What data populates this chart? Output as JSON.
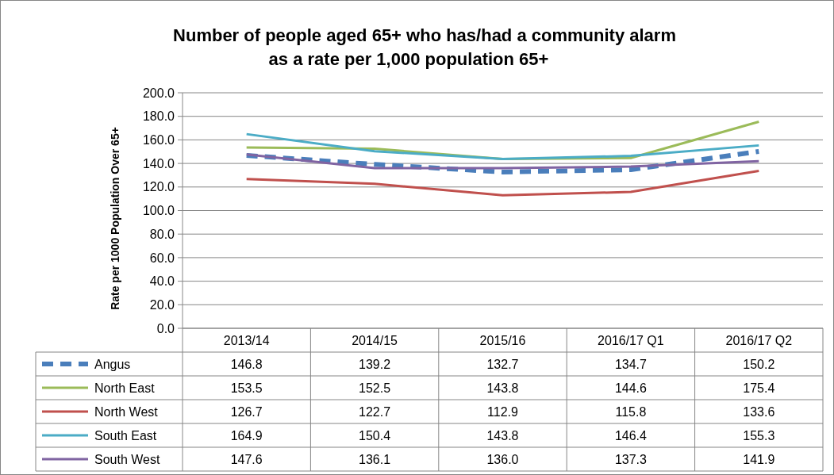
{
  "chart_data": {
    "type": "line",
    "title": "Number of people aged 65+ who has/had a community alarm\nas a rate per 1,000 population 65+",
    "ylabel": "Rate per 1000 Population  Over  65+",
    "categories": [
      "2013/14",
      "2014/15",
      "2015/16",
      "2016/17 Q1",
      "2016/17 Q2"
    ],
    "ylim": [
      0,
      200
    ],
    "yticks": [
      {
        "value": 0,
        "label": "0.0"
      },
      {
        "value": 20,
        "label": "20.0"
      },
      {
        "value": 40,
        "label": "40.0"
      },
      {
        "value": 60,
        "label": "60.0"
      },
      {
        "value": 80,
        "label": "80.0"
      },
      {
        "value": 100,
        "label": "100.0"
      },
      {
        "value": 120,
        "label": "120.0"
      },
      {
        "value": 140,
        "label": "140.0"
      },
      {
        "value": 160,
        "label": "160.0"
      },
      {
        "value": 180,
        "label": "180.0"
      },
      {
        "value": 200,
        "label": "200.0"
      }
    ],
    "grid": "y",
    "legend": "bottom",
    "marker": "none",
    "series": [
      {
        "name": "Angus",
        "color": "#4a7ebb",
        "line_style": "dashed",
        "values": [
          146.8,
          139.2,
          132.7,
          134.7,
          150.2
        ],
        "value_labels": [
          "146.8",
          "139.2",
          "132.7",
          "134.7",
          "150.2"
        ]
      },
      {
        "name": "North East",
        "color": "#9bbb59",
        "line_style": "solid",
        "values": [
          153.5,
          152.5,
          143.8,
          144.6,
          175.4
        ],
        "value_labels": [
          "153.5",
          "152.5",
          "143.8",
          "144.6",
          "175.4"
        ]
      },
      {
        "name": "North West",
        "color": "#c0504d",
        "line_style": "solid",
        "values": [
          126.7,
          122.7,
          112.9,
          115.8,
          133.6
        ],
        "value_labels": [
          "126.7",
          "122.7",
          "112.9",
          "115.8",
          "133.6"
        ]
      },
      {
        "name": "South East",
        "color": "#4bacc6",
        "line_style": "solid",
        "values": [
          164.9,
          150.4,
          143.8,
          146.4,
          155.3
        ],
        "value_labels": [
          "164.9",
          "150.4",
          "143.8",
          "146.4",
          "155.3"
        ]
      },
      {
        "name": "South West",
        "color": "#8064a2",
        "line_style": "solid",
        "values": [
          147.6,
          136.1,
          136.0,
          137.3,
          141.9
        ],
        "value_labels": [
          "147.6",
          "136.1",
          "136.0",
          "137.3",
          "141.9"
        ]
      }
    ]
  }
}
